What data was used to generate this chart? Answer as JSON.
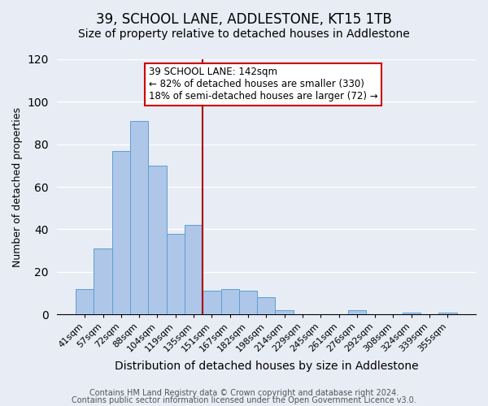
{
  "title": "39, SCHOOL LANE, ADDLESTONE, KT15 1TB",
  "subtitle": "Size of property relative to detached houses in Addlestone",
  "xlabel": "Distribution of detached houses by size in Addlestone",
  "ylabel": "Number of detached properties",
  "bar_labels": [
    "41sqm",
    "57sqm",
    "72sqm",
    "88sqm",
    "104sqm",
    "119sqm",
    "135sqm",
    "151sqm",
    "167sqm",
    "182sqm",
    "198sqm",
    "214sqm",
    "229sqm",
    "245sqm",
    "261sqm",
    "276sqm",
    "292sqm",
    "308sqm",
    "324sqm",
    "339sqm",
    "355sqm"
  ],
  "bar_heights": [
    12,
    31,
    77,
    91,
    70,
    38,
    42,
    11,
    12,
    11,
    8,
    2,
    0,
    0,
    0,
    2,
    0,
    0,
    1,
    0,
    1
  ],
  "bar_color": "#aec6e8",
  "bar_edge_color": "#5a9fd4",
  "vline_color": "#aa0000",
  "ylim": [
    0,
    120
  ],
  "yticks": [
    0,
    20,
    40,
    60,
    80,
    100,
    120
  ],
  "annotation_title": "39 SCHOOL LANE: 142sqm",
  "annotation_line1": "← 82% of detached houses are smaller (330)",
  "annotation_line2": "18% of semi-detached houses are larger (72) →",
  "annotation_box_color": "#ffffff",
  "annotation_box_edge": "#cc0000",
  "footer1": "Contains HM Land Registry data © Crown copyright and database right 2024.",
  "footer2": "Contains public sector information licensed under the Open Government Licence v3.0.",
  "background_color": "#e8ecf5",
  "title_fontsize": 12,
  "subtitle_fontsize": 10,
  "xlabel_fontsize": 10,
  "ylabel_fontsize": 9,
  "tick_fontsize": 8,
  "footer_fontsize": 7,
  "vline_x_index": 6.5
}
